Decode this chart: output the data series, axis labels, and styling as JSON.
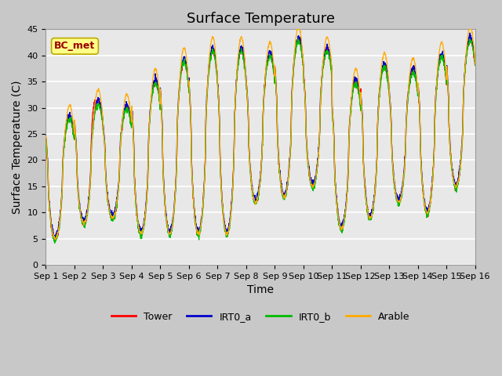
{
  "title": "Surface Temperature",
  "ylabel": "Surface Temperature (C)",
  "xlabel": "Time",
  "annotation": "BC_met",
  "ylim": [
    0,
    45
  ],
  "x_tick_labels": [
    "Sep 1",
    "Sep 2",
    "Sep 3",
    "Sep 4",
    "Sep 5",
    "Sep 6",
    "Sep 7",
    "Sep 8",
    "Sep 9",
    "Sep 10",
    "Sep 11",
    "Sep 12",
    "Sep 13",
    "Sep 14",
    "Sep 15",
    "Sep 16"
  ],
  "series_colors": {
    "Tower": "#ff0000",
    "IRT0_a": "#0000cc",
    "IRT0_b": "#00bb00",
    "Arable": "#ffaa00"
  },
  "fig_bg_color": "#c8c8c8",
  "plot_bg_color": "#e8e8e8",
  "grid_color": "#ffffff",
  "annotation_bg": "#ffff88",
  "annotation_text_color": "#990000",
  "annotation_border_color": "#bbaa00",
  "title_fontsize": 13,
  "label_fontsize": 10,
  "tick_fontsize": 8,
  "legend_fontsize": 9
}
